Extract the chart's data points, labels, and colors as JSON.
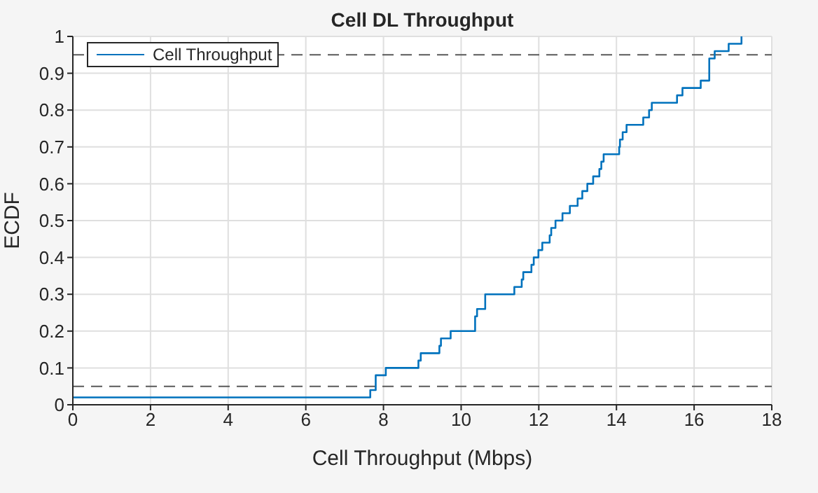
{
  "chart_data": {
    "type": "step",
    "title": "Cell DL Throughput",
    "xlabel": "Cell Throughput (Mbps)",
    "ylabel": "ECDF",
    "xlim": [
      0,
      18
    ],
    "xticks": [
      0,
      2,
      4,
      6,
      8,
      10,
      12,
      14,
      16,
      18
    ],
    "ylim": [
      0,
      1
    ],
    "yticks": [
      0,
      0.1,
      0.2,
      0.3,
      0.4,
      0.5,
      0.6,
      0.7,
      0.8,
      0.9,
      1
    ],
    "grid": true,
    "legend": "top left",
    "marker": "none",
    "ref_lines": [
      {
        "axis": "y",
        "value": 0.05,
        "color": "#595959",
        "line_style": "dashed"
      },
      {
        "axis": "y",
        "value": 0.95,
        "color": "#595959",
        "line_style": "dashed"
      }
    ],
    "series": [
      {
        "name": "Cell Throughput",
        "color": "#0072bd",
        "line_style": "solid",
        "x": [
          0,
          7.66,
          7.8,
          8.06,
          8.9,
          8.96,
          9.44,
          9.48,
          9.73,
          10.36,
          10.41,
          10.62,
          11.37,
          11.56,
          11.6,
          11.81,
          11.87,
          11.99,
          12.09,
          12.28,
          12.32,
          12.43,
          12.61,
          12.8,
          13.0,
          13.12,
          13.25,
          13.4,
          13.56,
          13.61,
          13.67,
          14.07,
          14.09,
          14.16,
          14.26,
          14.69,
          14.84,
          14.91,
          15.56,
          15.7,
          16.17,
          16.39,
          16.53,
          16.89,
          17.22
        ],
        "values": [
          0.02,
          0.04,
          0.08,
          0.1,
          0.12,
          0.14,
          0.16,
          0.18,
          0.2,
          0.24,
          0.26,
          0.3,
          0.32,
          0.34,
          0.36,
          0.38,
          0.4,
          0.42,
          0.44,
          0.46,
          0.48,
          0.5,
          0.52,
          0.54,
          0.56,
          0.58,
          0.6,
          0.62,
          0.64,
          0.66,
          0.68,
          0.7,
          0.72,
          0.74,
          0.76,
          0.78,
          0.8,
          0.82,
          0.84,
          0.86,
          0.88,
          0.94,
          0.96,
          0.98,
          1
        ]
      }
    ]
  }
}
